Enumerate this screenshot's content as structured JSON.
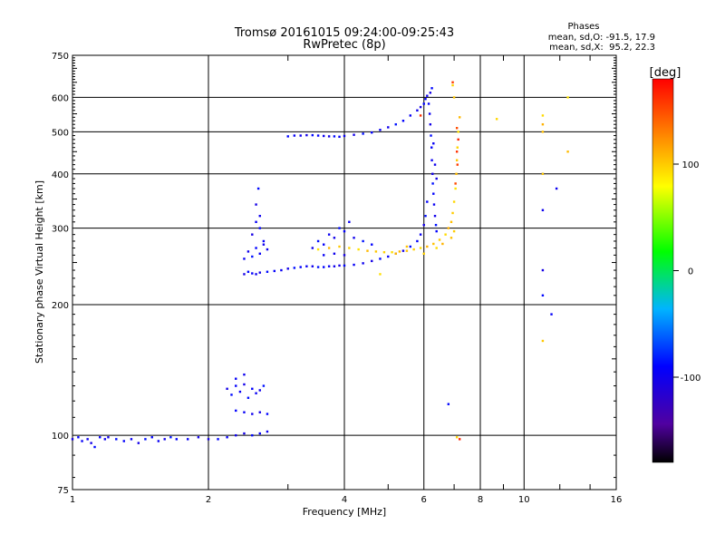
{
  "chart_data": {
    "type": "scatter",
    "title": "Tromsø 20161015 09:24:00-09:25:43",
    "subtitle": "RwPretec (8p)",
    "xlabel": "Frequency [MHz]",
    "ylabel": "Stationary phase Virtual Height [km]",
    "xscale": "log",
    "yscale": "log",
    "xlim": [
      1,
      16
    ],
    "ylim": [
      75,
      750
    ],
    "grid": true,
    "x_ticks": [
      1,
      2,
      4,
      6,
      8,
      10,
      16
    ],
    "x_tick_labels": [
      "1",
      "2",
      "4",
      "6",
      "8",
      "10",
      "16"
    ],
    "y_ticks": [
      75,
      100,
      200,
      300,
      400,
      500,
      600,
      750
    ],
    "y_tick_labels": [
      "75",
      "100",
      "200",
      "300",
      "400",
      "500",
      "600",
      "750"
    ],
    "legend": {
      "title": "Phases",
      "entries": [
        "mean, sd,O: -91.5, 17.9",
        "mean, sd,X:  95.2, 22.3"
      ],
      "position": "top-right"
    },
    "colorbar": {
      "label": "[deg]",
      "range": [
        -180,
        180
      ],
      "ticks": [
        100,
        0,
        -100
      ],
      "tick_labels": [
        "100",
        "0",
        "-100"
      ],
      "colors": [
        "#000000",
        "#5000a0",
        "#0000ff",
        "#00b4ff",
        "#00ff00",
        "#ffff00",
        "#ff8000",
        "#ff0000"
      ]
    },
    "series": [
      {
        "mode": "O",
        "phase_deg": -95,
        "points": [
          [
            1.0,
            98
          ],
          [
            1.03,
            99
          ],
          [
            1.05,
            97
          ],
          [
            1.08,
            98
          ],
          [
            1.1,
            96
          ],
          [
            1.12,
            94
          ],
          [
            1.15,
            99
          ],
          [
            1.18,
            98
          ],
          [
            1.2,
            99
          ],
          [
            1.25,
            98
          ],
          [
            1.3,
            97
          ],
          [
            1.35,
            98
          ],
          [
            1.4,
            96
          ],
          [
            1.45,
            98
          ],
          [
            1.5,
            99
          ],
          [
            1.55,
            97
          ],
          [
            1.6,
            98
          ],
          [
            1.65,
            99
          ],
          [
            1.7,
            98
          ],
          [
            1.8,
            98
          ],
          [
            1.9,
            99
          ],
          [
            2.0,
            98
          ],
          [
            2.1,
            98
          ],
          [
            2.2,
            99
          ],
          [
            2.3,
            100
          ],
          [
            2.4,
            101
          ],
          [
            2.5,
            100
          ],
          [
            2.6,
            101
          ],
          [
            2.7,
            102
          ],
          [
            2.2,
            128
          ],
          [
            2.25,
            124
          ],
          [
            2.3,
            130
          ],
          [
            2.35,
            126
          ],
          [
            2.4,
            131
          ],
          [
            2.45,
            122
          ],
          [
            2.5,
            128
          ],
          [
            2.55,
            125
          ],
          [
            2.6,
            127
          ],
          [
            2.65,
            130
          ],
          [
            2.3,
            114
          ],
          [
            2.4,
            113
          ],
          [
            2.5,
            112
          ],
          [
            2.6,
            113
          ],
          [
            2.7,
            112
          ],
          [
            2.3,
            135
          ],
          [
            2.4,
            138
          ],
          [
            2.4,
            235
          ],
          [
            2.45,
            238
          ],
          [
            2.5,
            236
          ],
          [
            2.55,
            235
          ],
          [
            2.6,
            237
          ],
          [
            2.7,
            238
          ],
          [
            2.8,
            239
          ],
          [
            2.9,
            240
          ],
          [
            3.0,
            242
          ],
          [
            3.1,
            243
          ],
          [
            3.2,
            244
          ],
          [
            3.3,
            245
          ],
          [
            3.4,
            245
          ],
          [
            3.5,
            244
          ],
          [
            3.6,
            244
          ],
          [
            3.7,
            245
          ],
          [
            3.8,
            245
          ],
          [
            3.9,
            246
          ],
          [
            4.0,
            246
          ],
          [
            4.2,
            247
          ],
          [
            4.4,
            249
          ],
          [
            4.6,
            252
          ],
          [
            4.8,
            255
          ],
          [
            5.0,
            258
          ],
          [
            5.2,
            262
          ],
          [
            5.4,
            266
          ],
          [
            5.6,
            272
          ],
          [
            5.8,
            280
          ],
          [
            5.9,
            290
          ],
          [
            6.0,
            305
          ],
          [
            6.05,
            320
          ],
          [
            6.1,
            345
          ],
          [
            2.4,
            255
          ],
          [
            2.45,
            265
          ],
          [
            2.5,
            258
          ],
          [
            2.55,
            270
          ],
          [
            2.6,
            262
          ],
          [
            2.65,
            275
          ],
          [
            2.5,
            290
          ],
          [
            2.6,
            300
          ],
          [
            2.55,
            310
          ],
          [
            2.6,
            320
          ],
          [
            2.55,
            340
          ],
          [
            2.58,
            370
          ],
          [
            2.65,
            280
          ],
          [
            2.7,
            268
          ],
          [
            3.4,
            270
          ],
          [
            3.5,
            280
          ],
          [
            3.6,
            275
          ],
          [
            3.7,
            290
          ],
          [
            3.8,
            285
          ],
          [
            3.9,
            300
          ],
          [
            4.0,
            295
          ],
          [
            4.1,
            310
          ],
          [
            4.2,
            285
          ],
          [
            4.4,
            280
          ],
          [
            4.6,
            275
          ],
          [
            3.6,
            260
          ],
          [
            3.8,
            262
          ],
          [
            4.0,
            260
          ],
          [
            3.0,
            488
          ],
          [
            3.1,
            490
          ],
          [
            3.2,
            490
          ],
          [
            3.3,
            491
          ],
          [
            3.4,
            491
          ],
          [
            3.5,
            490
          ],
          [
            3.6,
            489
          ],
          [
            3.7,
            488
          ],
          [
            3.8,
            488
          ],
          [
            3.9,
            487
          ],
          [
            4.0,
            489
          ],
          [
            4.2,
            492
          ],
          [
            4.4,
            495
          ],
          [
            4.6,
            498
          ],
          [
            4.8,
            505
          ],
          [
            5.0,
            512
          ],
          [
            5.2,
            520
          ],
          [
            5.4,
            530
          ],
          [
            5.6,
            545
          ],
          [
            5.8,
            560
          ],
          [
            5.9,
            570
          ],
          [
            6.0,
            580
          ],
          [
            6.05,
            595
          ],
          [
            6.1,
            605
          ],
          [
            6.2,
            615
          ],
          [
            6.25,
            630
          ],
          [
            6.15,
            580
          ],
          [
            6.18,
            550
          ],
          [
            6.2,
            520
          ],
          [
            6.22,
            490
          ],
          [
            6.24,
            460
          ],
          [
            6.25,
            430
          ],
          [
            6.27,
            400
          ],
          [
            6.28,
            380
          ],
          [
            6.3,
            360
          ],
          [
            6.32,
            340
          ],
          [
            6.35,
            320
          ],
          [
            6.38,
            305
          ],
          [
            6.4,
            295
          ],
          [
            6.3,
            470
          ],
          [
            6.35,
            420
          ],
          [
            6.4,
            390
          ],
          [
            6.8,
            118
          ],
          [
            11.0,
            400
          ],
          [
            11.0,
            330
          ],
          [
            11.0,
            240
          ],
          [
            11.0,
            210
          ],
          [
            11.5,
            190
          ],
          [
            11.8,
            370
          ]
        ]
      },
      {
        "mode": "X",
        "phase_deg": 100,
        "points": [
          [
            3.5,
            268
          ],
          [
            3.7,
            270
          ],
          [
            3.9,
            272
          ],
          [
            4.1,
            270
          ],
          [
            4.3,
            268
          ],
          [
            4.5,
            266
          ],
          [
            4.7,
            265
          ],
          [
            4.9,
            264
          ],
          [
            5.1,
            264
          ],
          [
            5.3,
            265
          ],
          [
            5.5,
            266
          ],
          [
            5.7,
            268
          ],
          [
            5.9,
            270
          ],
          [
            6.1,
            272
          ],
          [
            6.3,
            276
          ],
          [
            6.5,
            282
          ],
          [
            6.7,
            290
          ],
          [
            6.8,
            300
          ],
          [
            6.9,
            310
          ],
          [
            6.95,
            325
          ],
          [
            7.0,
            345
          ],
          [
            7.05,
            370
          ],
          [
            7.08,
            400
          ],
          [
            7.1,
            430
          ],
          [
            7.12,
            460
          ],
          [
            7.15,
            500
          ],
          [
            7.2,
            540
          ],
          [
            7.0,
            600
          ],
          [
            6.95,
            640
          ],
          [
            4.8,
            235
          ],
          [
            5.2,
            262
          ],
          [
            5.5,
            272
          ],
          [
            6.0,
            262
          ],
          [
            6.4,
            270
          ],
          [
            6.6,
            276
          ],
          [
            6.9,
            285
          ],
          [
            7.0,
            295
          ],
          [
            11.0,
            545
          ],
          [
            11.0,
            520
          ],
          [
            11.0,
            500
          ],
          [
            11.0,
            400
          ],
          [
            8.7,
            535
          ],
          [
            12.5,
            600
          ],
          [
            12.5,
            450
          ],
          [
            11.0,
            165
          ],
          [
            7.1,
            99
          ]
        ]
      },
      {
        "mode": "X",
        "phase_deg": 160,
        "points": [
          [
            7.1,
            510
          ],
          [
            7.15,
            480
          ],
          [
            7.1,
            450
          ],
          [
            7.12,
            420
          ],
          [
            7.05,
            380
          ],
          [
            7.2,
            98
          ],
          [
            5.9,
            545
          ],
          [
            6.95,
            650
          ]
        ]
      }
    ]
  }
}
